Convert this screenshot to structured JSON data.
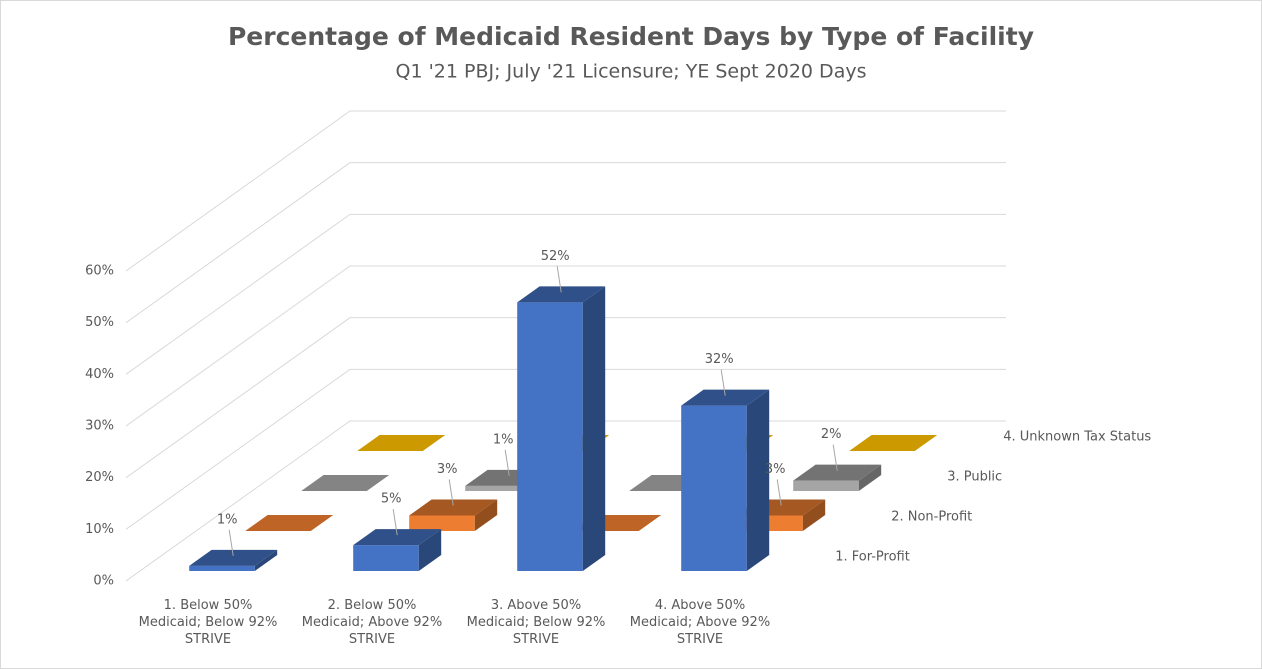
{
  "chart_data": {
    "type": "bar3d",
    "title": "Percentage of Medicaid Resident Days by Type of Facility",
    "subtitle": "Q1 '21 PBJ; July '21 Licensure; YE Sept 2020 Days",
    "categories": [
      "1. Below 50% Medicaid; Below 92% STRIVE",
      "2. Below 50% Medicaid; Above 92% STRIVE",
      "3. Above 50% Medicaid; Below 92% STRIVE",
      "4. Above 50% Medicaid; Above 92% STRIVE"
    ],
    "series": [
      {
        "name": "1. For-Profit",
        "color": "#4472c4",
        "values": [
          1,
          5,
          52,
          32
        ],
        "value_labels": [
          "1%",
          "5%",
          "52%",
          "32%"
        ]
      },
      {
        "name": "2. Non-Profit",
        "color": "#ed7d31",
        "values": [
          0,
          3,
          0,
          3
        ],
        "value_labels": [
          null,
          "3%",
          null,
          "3%"
        ]
      },
      {
        "name": "3. Public",
        "color": "#a5a5a5",
        "values": [
          0,
          1,
          0,
          2
        ],
        "value_labels": [
          null,
          "1%",
          null,
          "2%"
        ]
      },
      {
        "name": "4. Unknown Tax Status",
        "color": "#ffc000",
        "values": [
          0,
          0,
          0,
          0
        ],
        "value_labels": [
          null,
          null,
          null,
          null
        ]
      }
    ],
    "ylim": [
      0,
      60
    ],
    "yticks": [
      {
        "value": 0,
        "label": "0%"
      },
      {
        "value": 10,
        "label": "10%"
      },
      {
        "value": 20,
        "label": "20%"
      },
      {
        "value": 30,
        "label": "30%"
      },
      {
        "value": 40,
        "label": "40%"
      },
      {
        "value": 50,
        "label": "50%"
      },
      {
        "value": 60,
        "label": "60%"
      }
    ],
    "grid": true
  }
}
